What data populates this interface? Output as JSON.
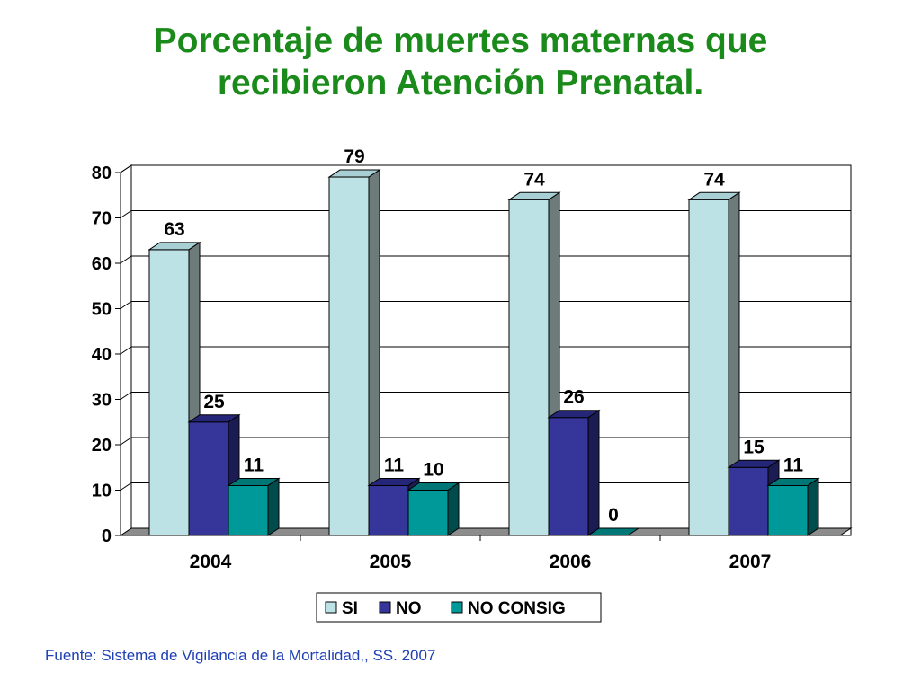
{
  "title": {
    "line1": "Porcentaje de muertes maternas que",
    "line2": "recibieron Atención Prenatal."
  },
  "source": "Fuente: Sistema de Vigilancia de la Mortalidad,, SS. 2007",
  "chart_data": {
    "type": "bar",
    "style": "3d-clustered",
    "title": "Porcentaje de muertes maternas que recibieron Atención Prenatal.",
    "categories": [
      "2004",
      "2005",
      "2006",
      "2007"
    ],
    "series": [
      {
        "name": "SI",
        "values": [
          63,
          79,
          74,
          74
        ],
        "color": "#bde2e6",
        "side": "#6e7b7b",
        "top": "#a8cfd3"
      },
      {
        "name": "NO",
        "values": [
          25,
          11,
          26,
          15
        ],
        "color": "#35359a",
        "side": "#1c1c55",
        "top": "#262678"
      },
      {
        "name": "NO CONSIG",
        "values": [
          11,
          10,
          0,
          11
        ],
        "color": "#009999",
        "side": "#004b4b",
        "top": "#007777"
      }
    ],
    "ylim": [
      0,
      80
    ],
    "yticks": [
      "0",
      "10",
      "20",
      "30",
      "40",
      "50",
      "60",
      "70",
      "80"
    ],
    "grid": true,
    "legend": "bottom"
  }
}
